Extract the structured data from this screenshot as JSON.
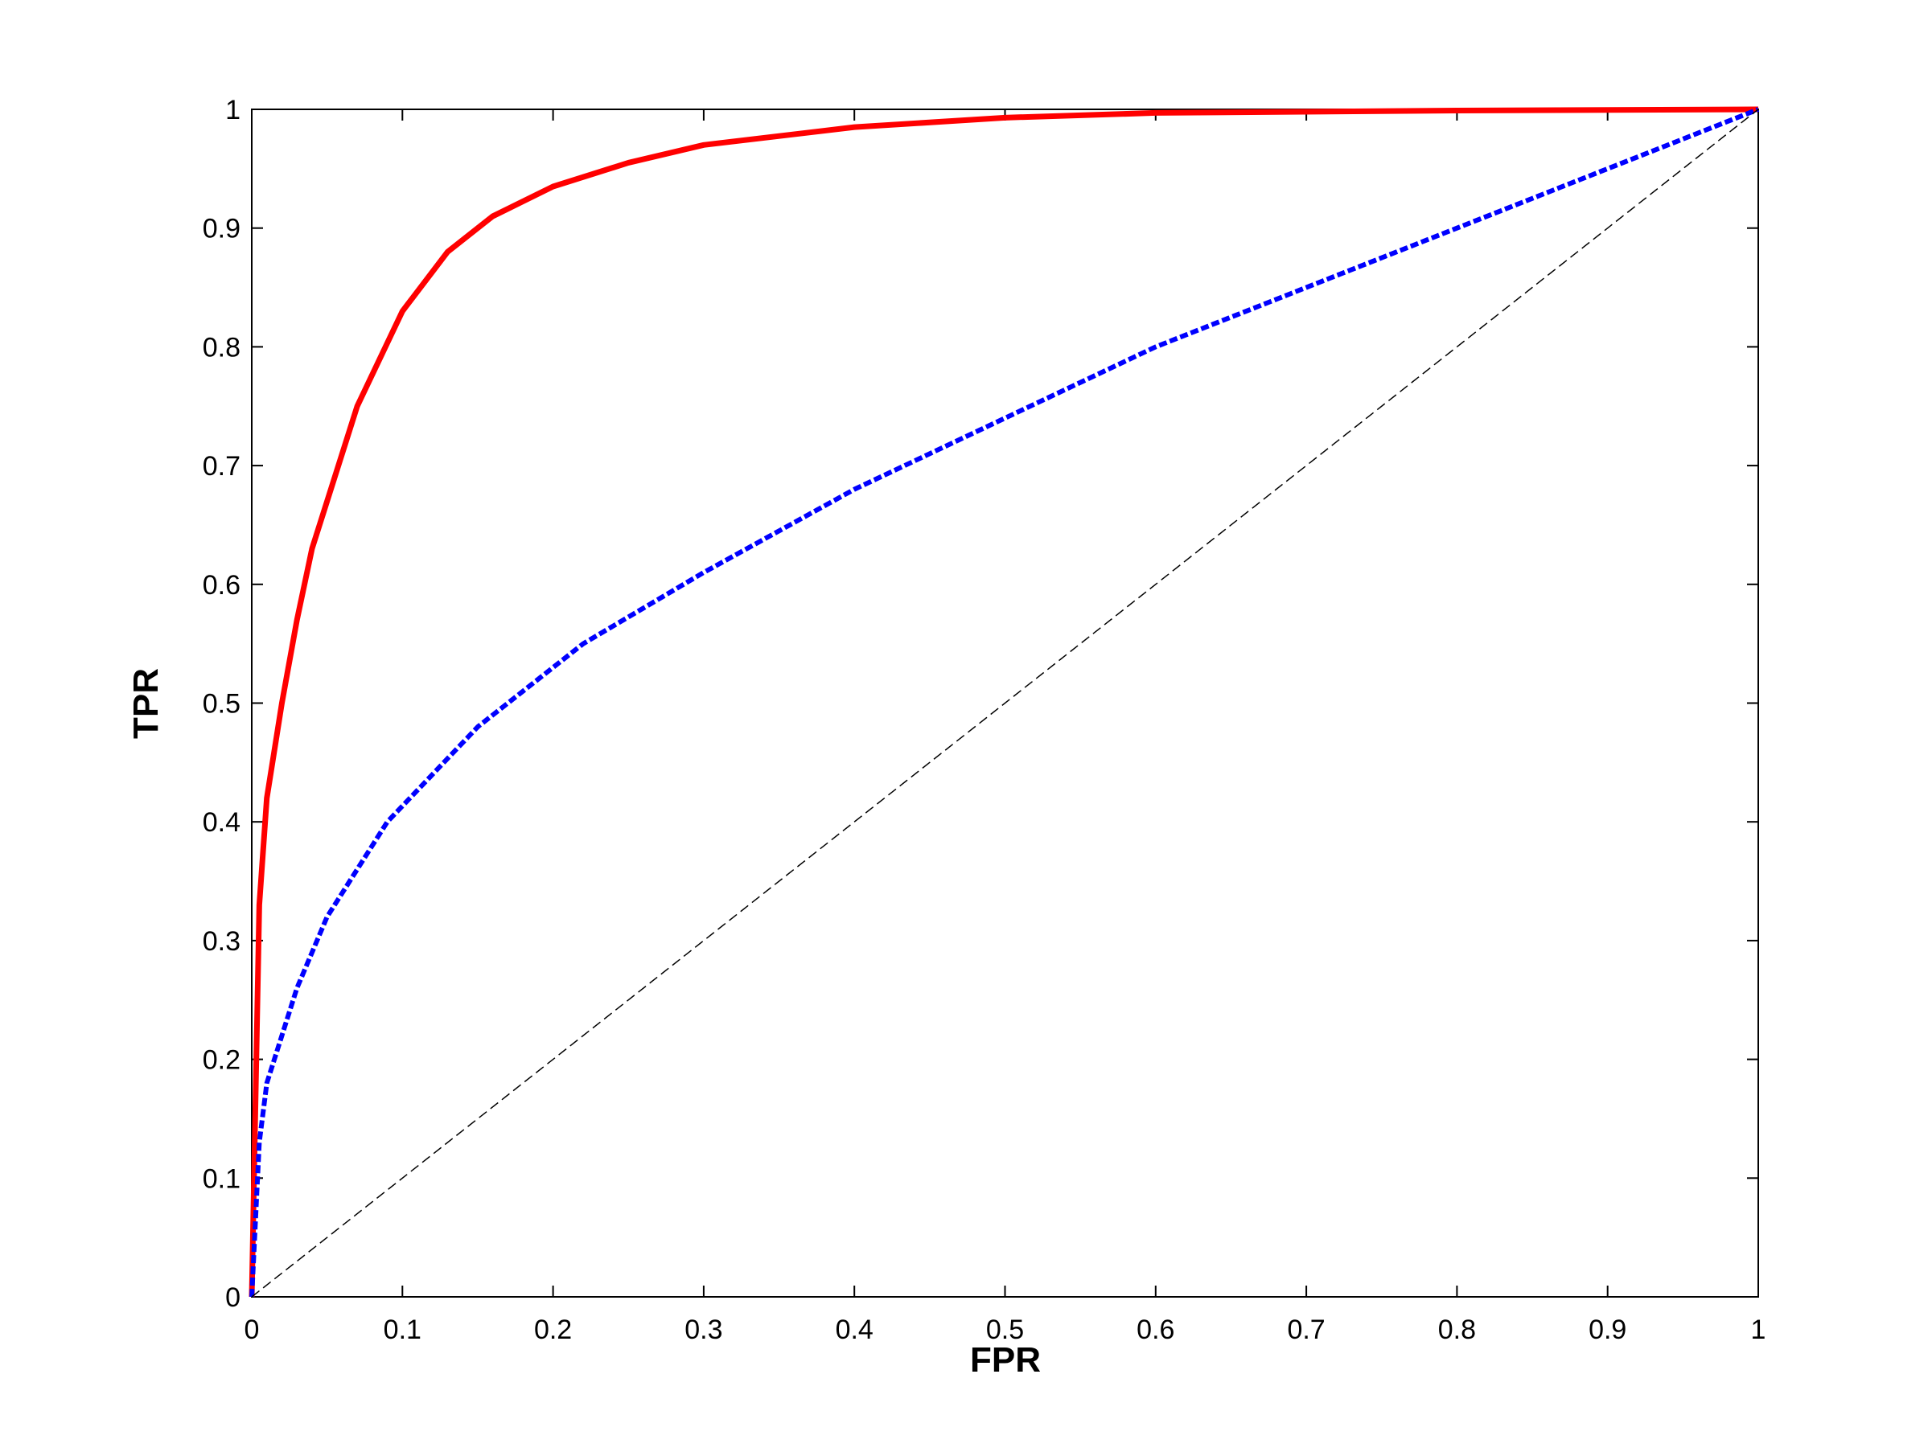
{
  "chart_data": {
    "type": "line",
    "x_label": "FPR",
    "y_label": "TPR",
    "xlim": [
      0,
      1
    ],
    "ylim": [
      0,
      1
    ],
    "xticks": [
      0,
      0.1,
      0.2,
      0.3,
      0.4,
      0.5,
      0.6,
      0.7,
      0.8,
      0.9,
      1
    ],
    "yticks": [
      0,
      0.1,
      0.2,
      0.3,
      0.4,
      0.5,
      0.6,
      0.7,
      0.8,
      0.9,
      1
    ],
    "grid": false,
    "series": [
      {
        "color": "#ff0000",
        "style": "solid",
        "x": [
          0,
          0.005,
          0.01,
          0.02,
          0.03,
          0.04,
          0.05,
          0.07,
          0.1,
          0.13,
          0.16,
          0.2,
          0.25,
          0.3,
          0.4,
          0.5,
          0.6,
          0.8,
          1
        ],
        "values": [
          0,
          0.33,
          0.42,
          0.5,
          0.57,
          0.63,
          0.67,
          0.75,
          0.83,
          0.88,
          0.91,
          0.935,
          0.955,
          0.97,
          0.985,
          0.993,
          0.997,
          0.999,
          1
        ]
      },
      {
        "color": "#0000ff",
        "style": "dashed",
        "x": [
          0,
          0.005,
          0.01,
          0.02,
          0.03,
          0.05,
          0.09,
          0.15,
          0.22,
          0.3,
          0.4,
          0.5,
          0.6,
          0.7,
          0.8,
          0.9,
          1
        ],
        "values": [
          0,
          0.13,
          0.18,
          0.22,
          0.26,
          0.32,
          0.4,
          0.48,
          0.55,
          0.61,
          0.68,
          0.74,
          0.8,
          0.85,
          0.9,
          0.95,
          1
        ]
      },
      {
        "color": "#000000",
        "style": "thin-dashed",
        "x": [
          0,
          1
        ],
        "values": [
          0,
          1
        ]
      }
    ]
  }
}
